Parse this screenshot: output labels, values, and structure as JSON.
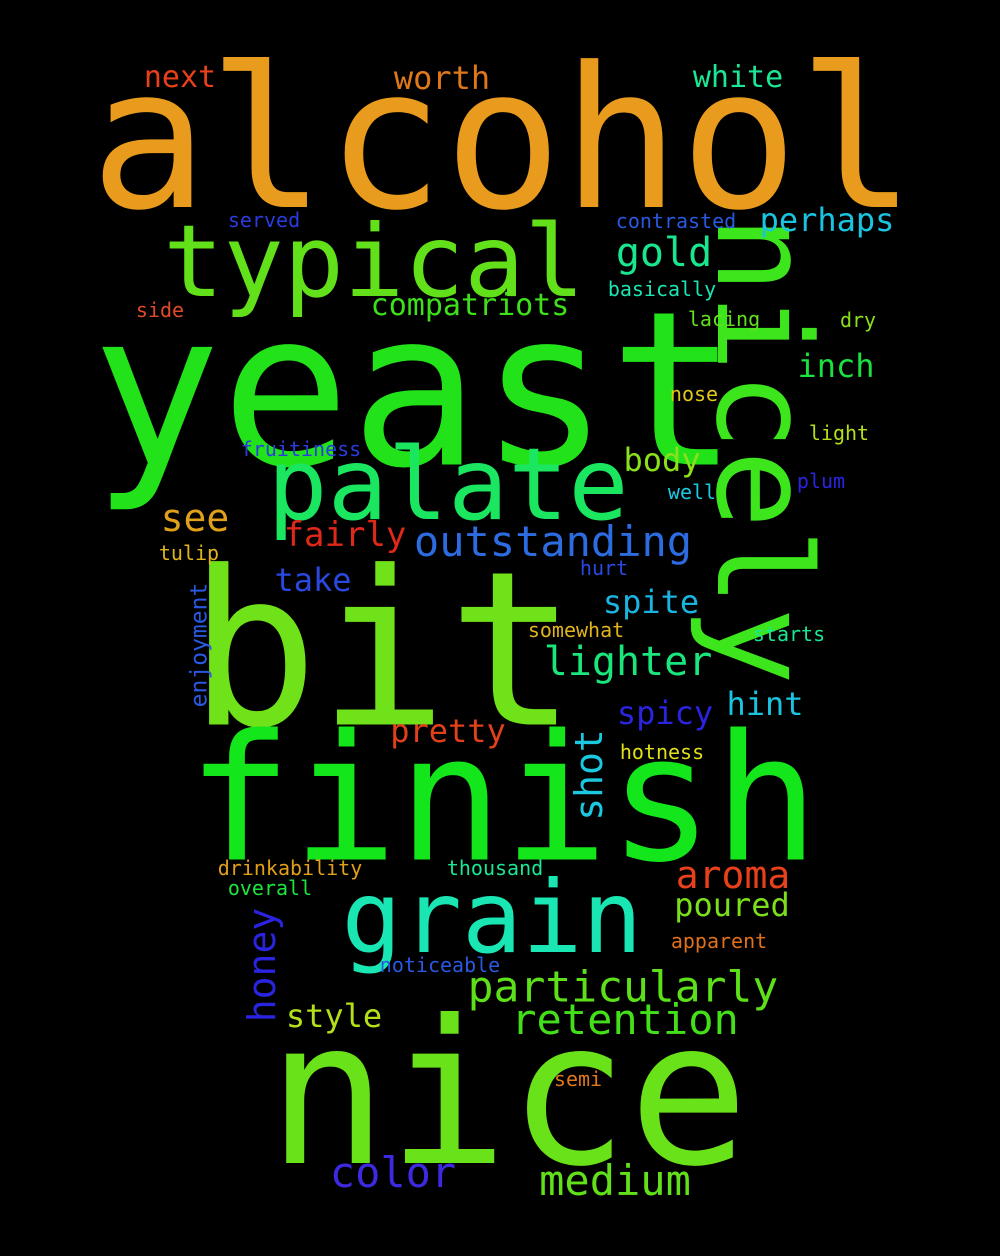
{
  "background": "#000000",
  "words": [
    {
      "text": "alcohol",
      "color": "#e89b1c"
    },
    {
      "text": "yeast",
      "color": "#22e31a"
    },
    {
      "text": "nicely",
      "color": "#3de61c"
    },
    {
      "text": "bit",
      "color": "#6fe21a"
    },
    {
      "text": "finish",
      "color": "#14e61c"
    },
    {
      "text": "nice",
      "color": "#69e21a"
    },
    {
      "text": "typical",
      "color": "#62e01a"
    },
    {
      "text": "palate",
      "color": "#1ae660"
    },
    {
      "text": "grain",
      "color": "#1ae6b4"
    },
    {
      "text": "outstanding",
      "color": "#2d6be0"
    },
    {
      "text": "particularly",
      "color": "#5de01a"
    },
    {
      "text": "retention",
      "color": "#43e01a"
    },
    {
      "text": "lighter",
      "color": "#1ae67c"
    },
    {
      "text": "medium",
      "color": "#62e01a"
    },
    {
      "text": "color",
      "color": "#3d2ae0"
    },
    {
      "text": "aroma",
      "color": "#e8401a"
    },
    {
      "text": "shot",
      "color": "#1ac8e0"
    },
    {
      "text": "gold",
      "color": "#1ae690"
    },
    {
      "text": "perhaps",
      "color": "#1ac4e0"
    },
    {
      "text": "honey",
      "color": "#2a24e0"
    },
    {
      "text": "next",
      "color": "#e8401a"
    },
    {
      "text": "worth",
      "color": "#e0781a"
    },
    {
      "text": "white",
      "color": "#1ae694"
    },
    {
      "text": "compatriots",
      "color": "#3de01a"
    },
    {
      "text": "inch",
      "color": "#1ae040"
    },
    {
      "text": "body",
      "color": "#8ae01a"
    },
    {
      "text": "see",
      "color": "#e0a01a"
    },
    {
      "text": "fairly",
      "color": "#e0281a"
    },
    {
      "text": "take",
      "color": "#2a48e0"
    },
    {
      "text": "spite",
      "color": "#1ab4e0"
    },
    {
      "text": "spicy",
      "color": "#2a24e0"
    },
    {
      "text": "hint",
      "color": "#1ac4e0"
    },
    {
      "text": "pretty",
      "color": "#e0401a"
    },
    {
      "text": "poured",
      "color": "#7ae01a"
    },
    {
      "text": "style",
      "color": "#b4e01a"
    },
    {
      "text": "enjoyment",
      "color": "#2a58e0"
    },
    {
      "text": "served",
      "color": "#2a3ce0"
    },
    {
      "text": "contrasted",
      "color": "#2a58e0"
    },
    {
      "text": "basically",
      "color": "#1ae6b4"
    },
    {
      "text": "side",
      "color": "#e04a2a"
    },
    {
      "text": "lacing",
      "color": "#62e01a"
    },
    {
      "text": "dry",
      "color": "#8ae01a"
    },
    {
      "text": "nose",
      "color": "#e0c81a"
    },
    {
      "text": "light",
      "color": "#b4e01a"
    },
    {
      "text": "fruitiness",
      "color": "#2a3ce0"
    },
    {
      "text": "plum",
      "color": "#2a24e0"
    },
    {
      "text": "well",
      "color": "#1ac8e0"
    },
    {
      "text": "tulip",
      "color": "#e0b41a"
    },
    {
      "text": "hurt",
      "color": "#2a48e0"
    },
    {
      "text": "somewhat",
      "color": "#e0b41a"
    },
    {
      "text": "starts",
      "color": "#1ae694"
    },
    {
      "text": "hotness",
      "color": "#e0e01a"
    },
    {
      "text": "drinkability",
      "color": "#e0a01a"
    },
    {
      "text": "thousand",
      "color": "#1ae694"
    },
    {
      "text": "overall",
      "color": "#1ae640"
    },
    {
      "text": "apparent",
      "color": "#e0701a"
    },
    {
      "text": "noticeable",
      "color": "#2a58e0"
    },
    {
      "text": "semi",
      "color": "#e0781a"
    }
  ]
}
